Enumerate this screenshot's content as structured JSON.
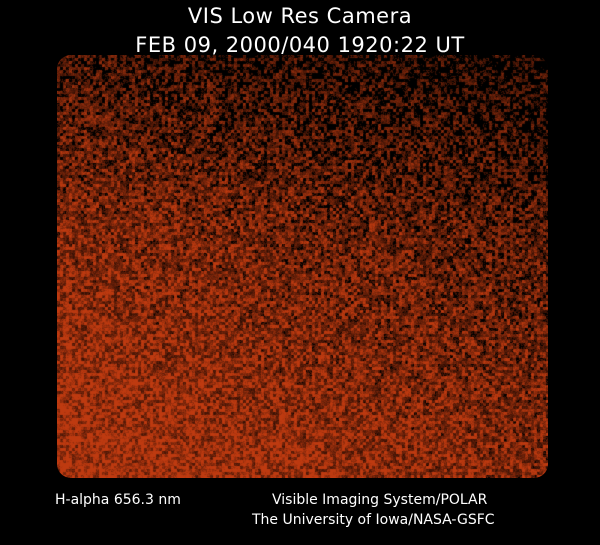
{
  "header": {
    "title": "VIS Low Res Camera",
    "timestamp": "FEB 09, 2000/040 1920:22 UT"
  },
  "footer": {
    "filter": "H-alpha 656.3 nm",
    "instrument": "Visible Imaging System/POLAR",
    "institution": "The University of Iowa/NASA-GSFC"
  },
  "image": {
    "colormap": "black-to-orange",
    "color": "#b43c10"
  }
}
